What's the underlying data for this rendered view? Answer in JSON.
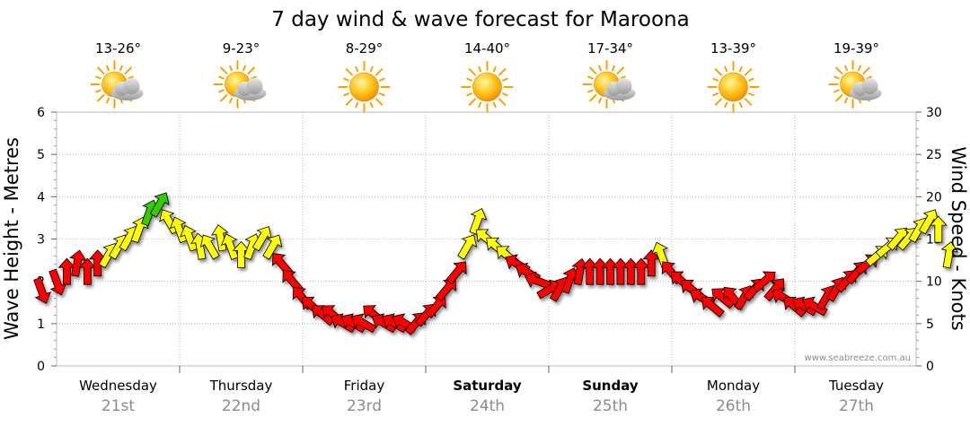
{
  "chart_data": {
    "type": "line",
    "title": "7 day wind & wave forecast for Maroona",
    "ylabel_left": "Wave Height - Metres",
    "ylabel_right": "Wind Speed - Knots",
    "ylim_left": [
      0,
      6
    ],
    "ylim_right": [
      0,
      30
    ],
    "left_ticks": [
      "0",
      "1",
      "2",
      "3",
      "4",
      "5",
      "6"
    ],
    "right_ticks": [
      "0",
      "5",
      "10",
      "15",
      "20",
      "25",
      "30"
    ],
    "grid": true,
    "credit": "www.seabreeze.com.au",
    "days": [
      {
        "name": "Wednesday",
        "date": "21st",
        "temp": "13-26°",
        "icon": "sun-cloud-icon",
        "bold": false
      },
      {
        "name": "Thursday",
        "date": "22nd",
        "temp": "9-23°",
        "icon": "sun-cloud-icon",
        "bold": false
      },
      {
        "name": "Friday",
        "date": "23rd",
        "temp": "8-29°",
        "icon": "sun-icon",
        "bold": false
      },
      {
        "name": "Saturday",
        "date": "24th",
        "temp": "14-40°",
        "icon": "sun-icon",
        "bold": true
      },
      {
        "name": "Sunday",
        "date": "25th",
        "temp": "17-34°",
        "icon": "sun-cloud-icon",
        "bold": true
      },
      {
        "name": "Monday",
        "date": "26th",
        "temp": "13-39°",
        "icon": "sun-icon",
        "bold": false
      },
      {
        "name": "Tuesday",
        "date": "27th",
        "temp": "19-39°",
        "icon": "sun-cloud-icon",
        "bold": false
      }
    ],
    "series": [
      {
        "name": "Wind Speed (knots)",
        "axis": "right",
        "note": "x = hours from start of Wednesday; arrows coloured by strength",
        "colors": {
          "strong": "#ff0000",
          "moderate": "#ffff00",
          "very_strong": "#33cc00"
        },
        "x": [
          -3,
          0,
          2,
          4,
          6,
          8,
          10,
          12,
          14,
          16,
          18,
          20,
          22,
          24,
          26,
          28,
          30,
          32,
          34,
          36,
          38,
          40,
          42,
          44,
          46,
          48,
          50,
          52,
          54,
          56,
          58,
          60,
          62,
          64,
          66,
          68,
          70,
          72,
          74,
          76,
          78,
          80,
          82,
          84,
          86,
          88,
          90,
          92,
          94,
          96,
          98,
          100,
          102,
          104,
          106,
          108,
          110,
          112,
          114,
          116,
          118,
          120,
          122,
          124,
          126,
          128,
          130,
          132,
          134,
          136,
          138,
          140,
          142,
          144,
          146,
          148,
          150,
          152,
          154,
          156,
          158,
          160,
          162,
          164,
          166,
          168,
          170,
          172,
          174
        ],
        "values": [
          9,
          10,
          11,
          12,
          11,
          12,
          13,
          14,
          15,
          16,
          18,
          19,
          17,
          16,
          15,
          14,
          14,
          15,
          14,
          13,
          14,
          15,
          14,
          12,
          10,
          8,
          7,
          6,
          6,
          5,
          5,
          5,
          6,
          5,
          5,
          5,
          5,
          6,
          7,
          9,
          11,
          14,
          17,
          15,
          14,
          13,
          12,
          11,
          10,
          9,
          9,
          10,
          11,
          11,
          11,
          11,
          11,
          11,
          11,
          12,
          13,
          11,
          10,
          9,
          8,
          7,
          8,
          8,
          8,
          9,
          10,
          9,
          8,
          7,
          7,
          7,
          8,
          9,
          10,
          11,
          12,
          13,
          14,
          15,
          15,
          16,
          17,
          16,
          13
        ]
      }
    ],
    "wind_rotation_deg": [
      160,
      160,
      0,
      10,
      0,
      0,
      30,
      30,
      30,
      20,
      20,
      30,
      -30,
      -20,
      -20,
      -10,
      -30,
      -10,
      -20,
      0,
      20,
      30,
      30,
      -40,
      -40,
      -40,
      -50,
      -50,
      -50,
      -60,
      -60,
      -60,
      -50,
      -60,
      -60,
      -60,
      40,
      40,
      40,
      40,
      40,
      30,
      20,
      -50,
      -50,
      -50,
      -60,
      -60,
      -70,
      60,
      30,
      20,
      10,
      0,
      0,
      0,
      0,
      0,
      0,
      0,
      -20,
      -40,
      -50,
      -50,
      -60,
      -50,
      -50,
      -40,
      30,
      40,
      50,
      40,
      -60,
      -50,
      -60,
      -60,
      30,
      30,
      40,
      40,
      50,
      50,
      50,
      40,
      40,
      30,
      30,
      0,
      10
    ]
  }
}
